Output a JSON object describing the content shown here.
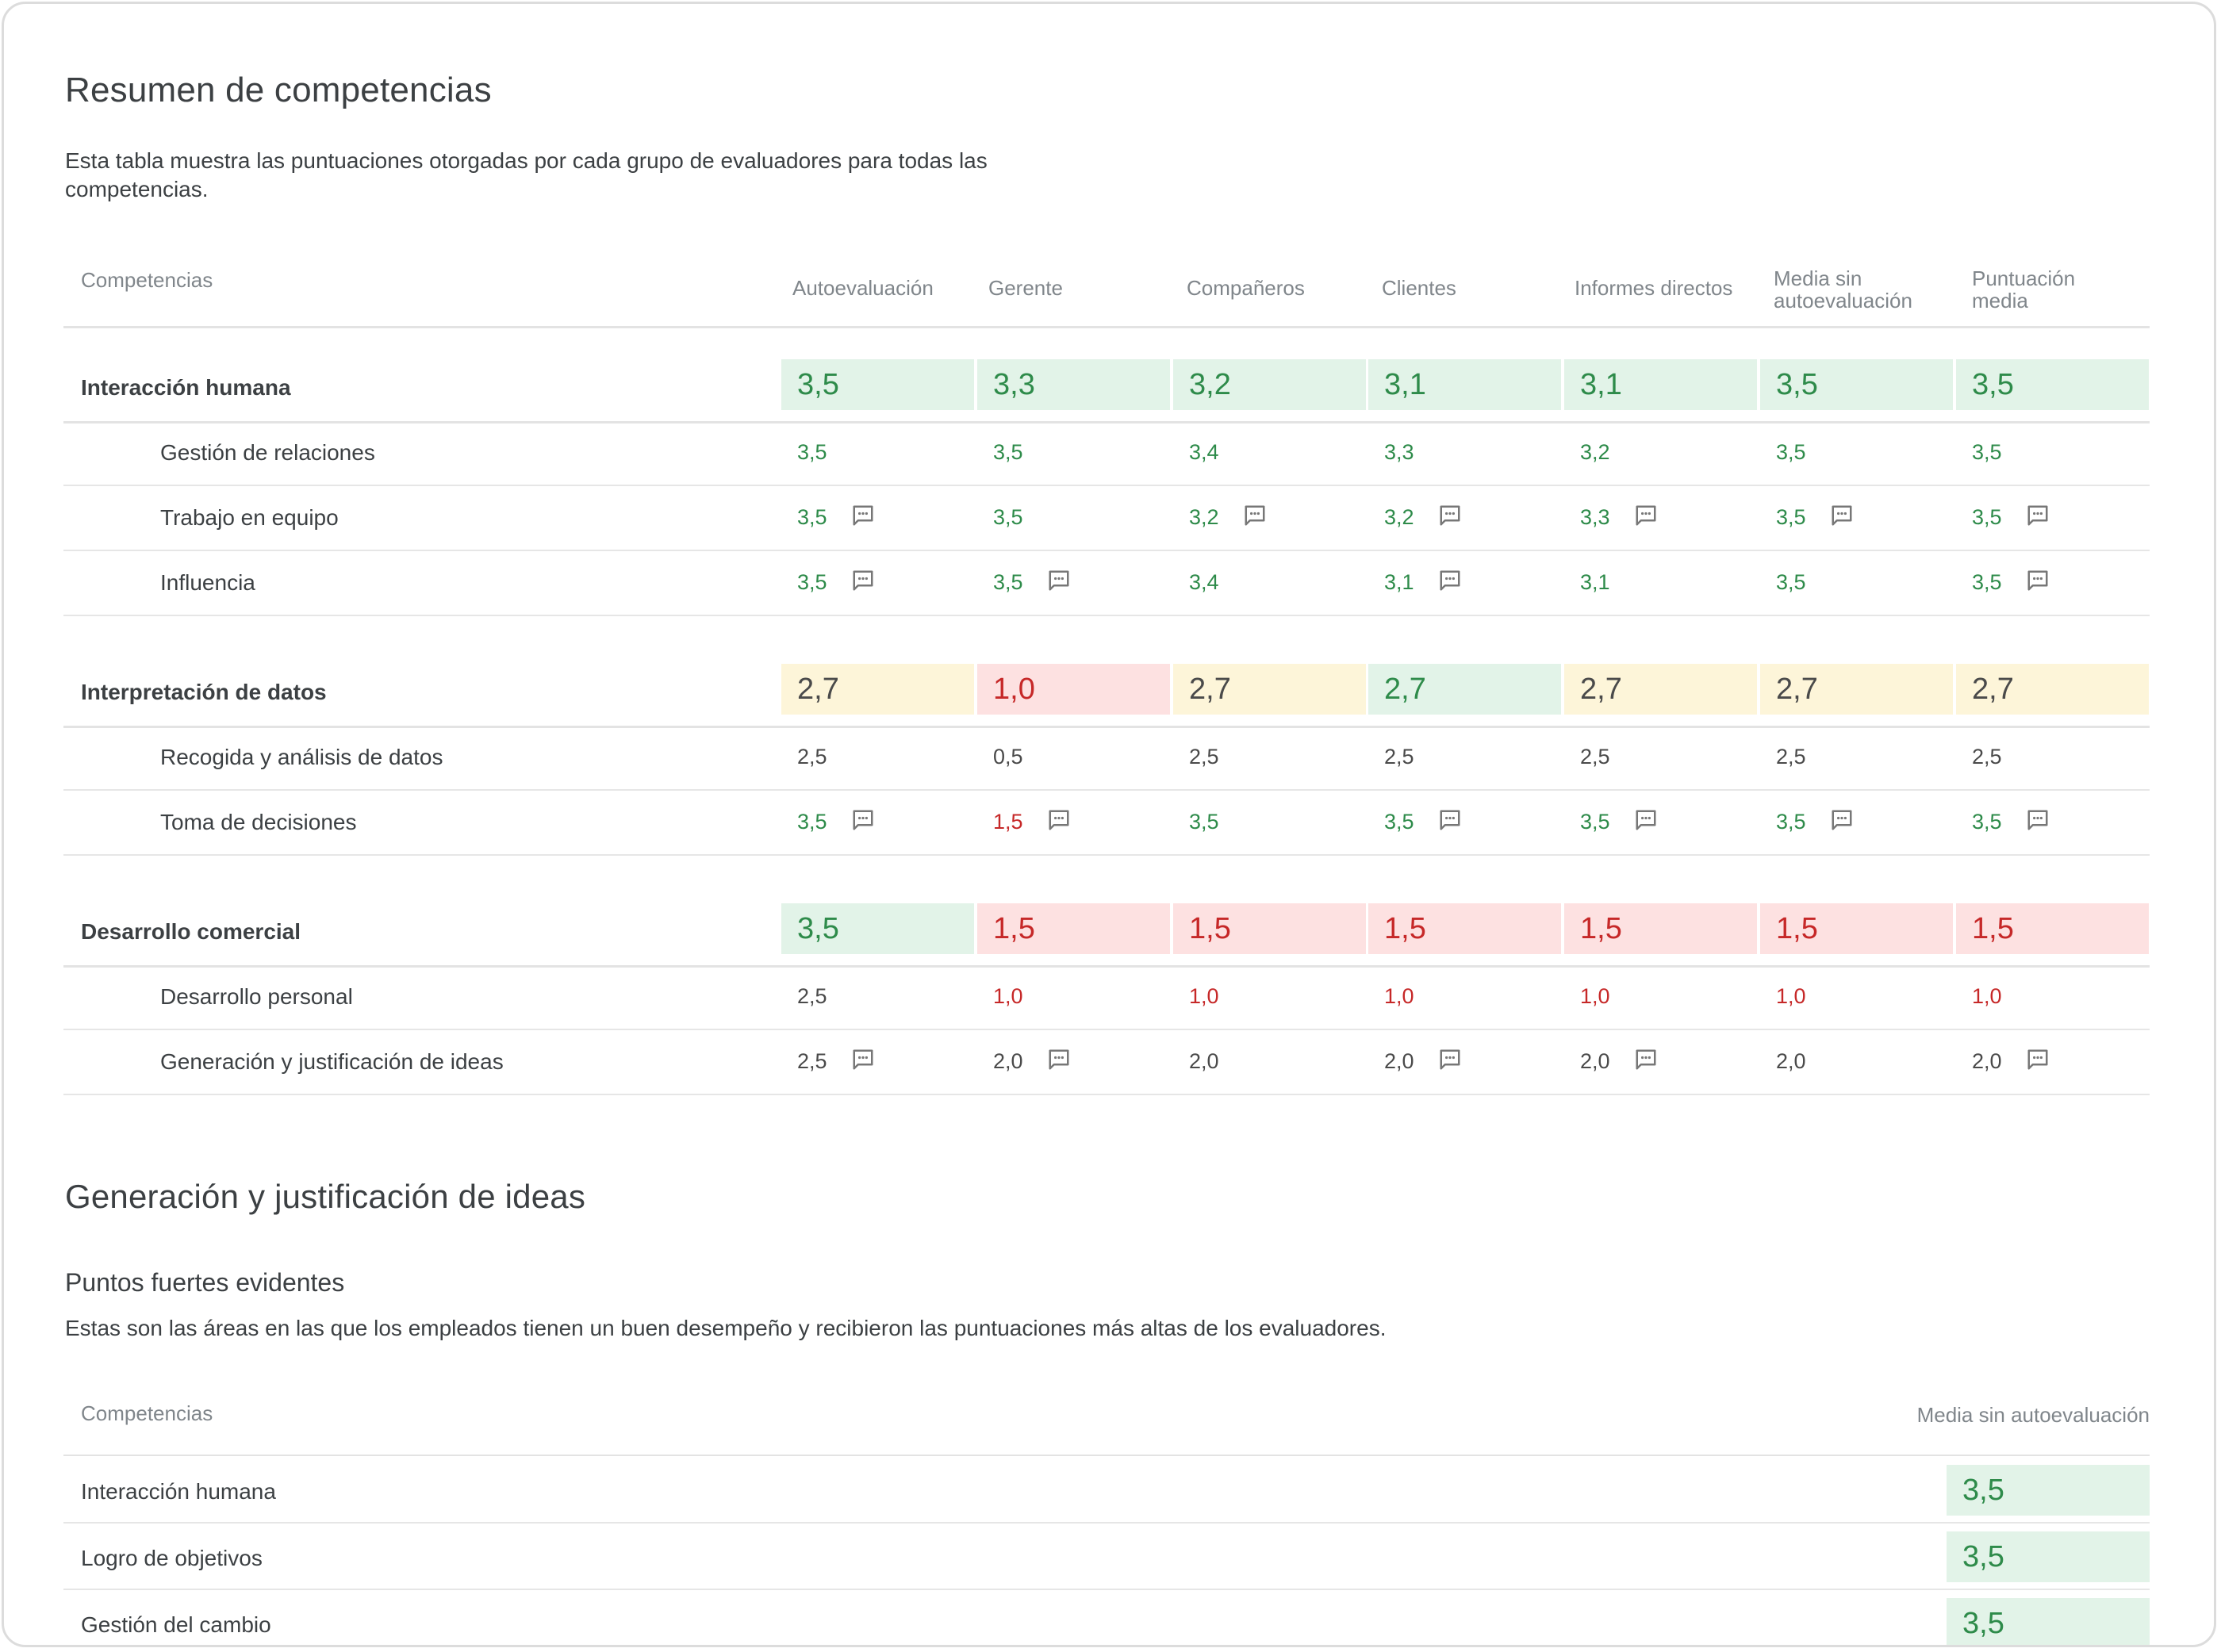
{
  "summary": {
    "title": "Resumen de competencias",
    "description": "Esta tabla muestra las puntuaciones otorgadas por cada grupo de evaluadores para todas las competencias.",
    "columns": [
      "Competencias",
      "Autoevaluación",
      "Gerente",
      "Compañeros",
      "Clientes",
      "Informes directos",
      "Media sin autoevaluación",
      "Puntuación media"
    ],
    "groups": [
      {
        "name": "Interacción humana",
        "scores": [
          "3,5",
          "3,3",
          "3,2",
          "3,1",
          "3,1",
          "3,5",
          "3,5"
        ],
        "levels": [
          "green",
          "green",
          "green",
          "green",
          "green",
          "green",
          "green"
        ],
        "items": [
          {
            "name": "Gestión de relaciones",
            "scores": [
              "3,5",
              "3,5",
              "3,4",
              "3,3",
              "3,2",
              "3,5",
              "3,5"
            ],
            "levels": [
              "green",
              "green",
              "green",
              "green",
              "green",
              "green",
              "green"
            ],
            "comments": [
              false,
              false,
              false,
              false,
              false,
              false,
              false
            ]
          },
          {
            "name": "Trabajo en equipo",
            "scores": [
              "3,5",
              "3,5",
              "3,2",
              "3,2",
              "3,3",
              "3,5",
              "3,5"
            ],
            "levels": [
              "green",
              "green",
              "green",
              "green",
              "green",
              "green",
              "green"
            ],
            "comments": [
              true,
              false,
              true,
              true,
              true,
              true,
              true
            ]
          },
          {
            "name": "Influencia",
            "scores": [
              "3,5",
              "3,5",
              "3,4",
              "3,1",
              "3,1",
              "3,5",
              "3,5"
            ],
            "levels": [
              "green",
              "green",
              "green",
              "green",
              "green",
              "green",
              "green"
            ],
            "comments": [
              true,
              true,
              false,
              true,
              false,
              false,
              true
            ]
          }
        ]
      },
      {
        "name": "Interpretación de datos",
        "scores": [
          "2,7",
          "1,0",
          "2,7",
          "2,7",
          "2,7",
          "2,7",
          "2,7"
        ],
        "levels": [
          "yellow",
          "red",
          "yellow",
          "green",
          "yellow",
          "yellow",
          "yellow"
        ],
        "items": [
          {
            "name": "Recogida y análisis de datos",
            "scores": [
              "2,5",
              "0,5",
              "2,5",
              "2,5",
              "2,5",
              "2,5",
              "2,5"
            ],
            "levels": [
              "gray",
              "gray",
              "gray",
              "gray",
              "gray",
              "gray",
              "gray"
            ],
            "comments": [
              false,
              false,
              false,
              false,
              false,
              false,
              false
            ]
          },
          {
            "name": "Toma de decisiones",
            "scores": [
              "3,5",
              "1,5",
              "3,5",
              "3,5",
              "3,5",
              "3,5",
              "3,5"
            ],
            "levels": [
              "green",
              "red",
              "green",
              "green",
              "green",
              "green",
              "green"
            ],
            "comments": [
              true,
              true,
              false,
              true,
              true,
              true,
              true
            ]
          }
        ]
      },
      {
        "name": "Desarrollo comercial",
        "scores": [
          "3,5",
          "1,5",
          "1,5",
          "1,5",
          "1,5",
          "1,5",
          "1,5"
        ],
        "levels": [
          "green",
          "red",
          "red",
          "red",
          "red",
          "red",
          "red"
        ],
        "items": [
          {
            "name": "Desarrollo personal",
            "scores": [
              "2,5",
              "1,0",
              "1,0",
              "1,0",
              "1,0",
              "1,0",
              "1,0"
            ],
            "levels": [
              "gray",
              "red",
              "red",
              "red",
              "red",
              "red",
              "red"
            ],
            "comments": [
              false,
              false,
              false,
              false,
              false,
              false,
              false
            ]
          },
          {
            "name": "Generación y justificación de ideas",
            "scores": [
              "2,5",
              "2,0",
              "2,0",
              "2,0",
              "2,0",
              "2,0",
              "2,0"
            ],
            "levels": [
              "gray",
              "gray",
              "gray",
              "gray",
              "gray",
              "gray",
              "gray"
            ],
            "comments": [
              true,
              true,
              false,
              true,
              true,
              false,
              true
            ]
          }
        ]
      }
    ]
  },
  "detail": {
    "title": "Generación y justificación de ideas",
    "strengths_title": "Puntos fuertes evidentes",
    "strengths_description": "Estas son las áreas en las que los empleados tienen un buen desempeño y recibieron las puntuaciones más altas de los evaluadores.",
    "columns": [
      "Competencias",
      "Media sin autoevaluación"
    ],
    "rows": [
      {
        "name": "Interacción humana",
        "score": "3,5",
        "level": "green"
      },
      {
        "name": "Logro de objetivos",
        "score": "3,5",
        "level": "green"
      },
      {
        "name": "Gestión del cambio",
        "score": "3,5",
        "level": "green"
      }
    ]
  },
  "colors": {
    "green_bg": "#e2f3e8",
    "yellow_bg": "#fdf5d9",
    "red_bg": "#fde1e1",
    "green_text": "#2e8b4a",
    "red_text": "#c62828"
  },
  "icons": {
    "comment": "comment-icon"
  }
}
